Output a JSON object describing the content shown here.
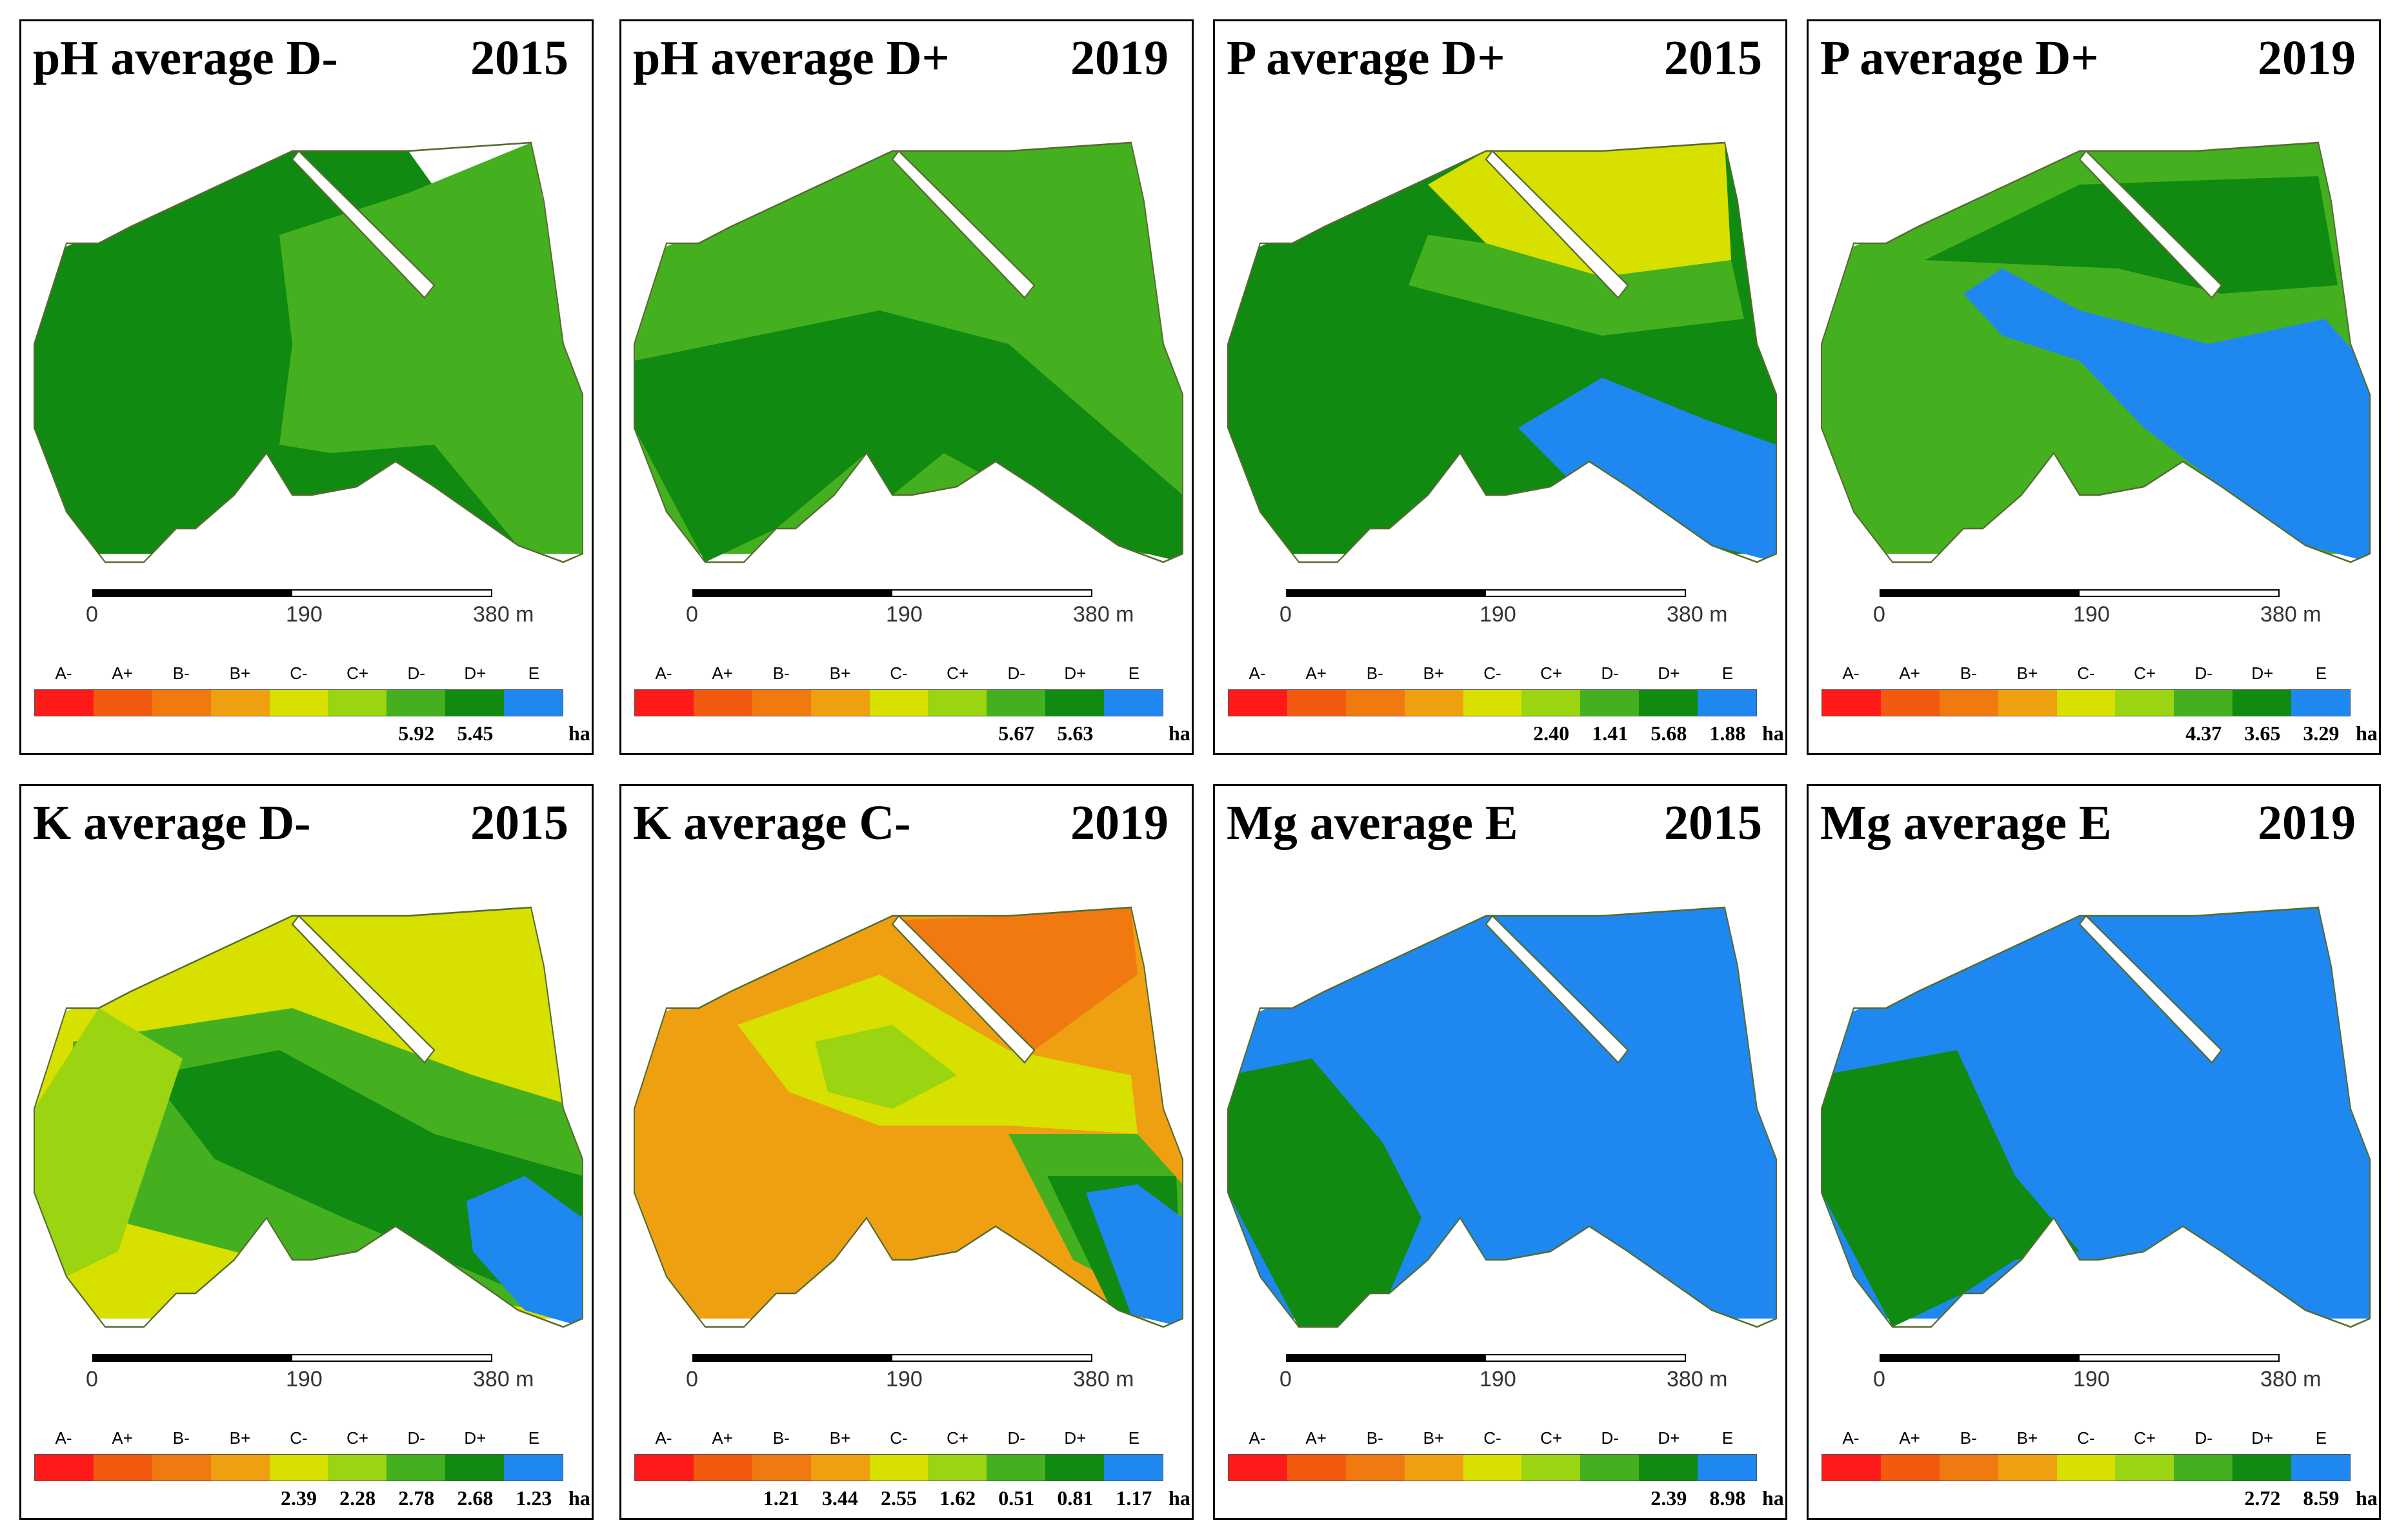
{
  "legend": {
    "classes": [
      "A-",
      "A+",
      "B-",
      "B+",
      "C-",
      "C+",
      "D-",
      "D+",
      "E"
    ],
    "colors": [
      "#ff1a1a",
      "#f25a10",
      "#f07a10",
      "#eea010",
      "#d8e000",
      "#9bd410",
      "#44b020",
      "#108a10",
      "#1e88f0"
    ],
    "unit": "ha"
  },
  "scale": {
    "ticks": [
      "0",
      "190",
      "380 m"
    ]
  },
  "panels": [
    {
      "title": "pH average D-",
      "year": "2015",
      "values": [
        "",
        "",
        "",
        "",
        "",
        "",
        "5.92",
        "5.45",
        ""
      ]
    },
    {
      "title": "pH average D+",
      "year": "2019",
      "values": [
        "",
        "",
        "",
        "",
        "",
        "",
        "5.67",
        "5.63",
        ""
      ]
    },
    {
      "title": "P average D+",
      "year": "2015",
      "values": [
        "",
        "",
        "",
        "",
        "",
        "2.40",
        "1.41",
        "5.68",
        "1.88"
      ]
    },
    {
      "title": "P average D+",
      "year": "2019",
      "values": [
        "",
        "",
        "",
        "",
        "",
        "",
        "4.37",
        "3.65",
        "3.29"
      ]
    },
    {
      "title": "K average D-",
      "year": "2015",
      "values": [
        "",
        "",
        "",
        "",
        "2.39",
        "2.28",
        "2.78",
        "2.68",
        "1.23"
      ]
    },
    {
      "title": "K average C-",
      "year": "2019",
      "values": [
        "",
        "",
        "1.21",
        "3.44",
        "2.55",
        "1.62",
        "0.51",
        "0.81",
        "1.17"
      ]
    },
    {
      "title": "Mg average E",
      "year": "2015",
      "values": [
        "",
        "",
        "",
        "",
        "",
        "",
        "",
        "2.39",
        "8.98"
      ]
    },
    {
      "title": "Mg average E",
      "year": "2019",
      "values": [
        "",
        "",
        "",
        "",
        "",
        "",
        "",
        "2.72",
        "8.59"
      ]
    }
  ]
}
